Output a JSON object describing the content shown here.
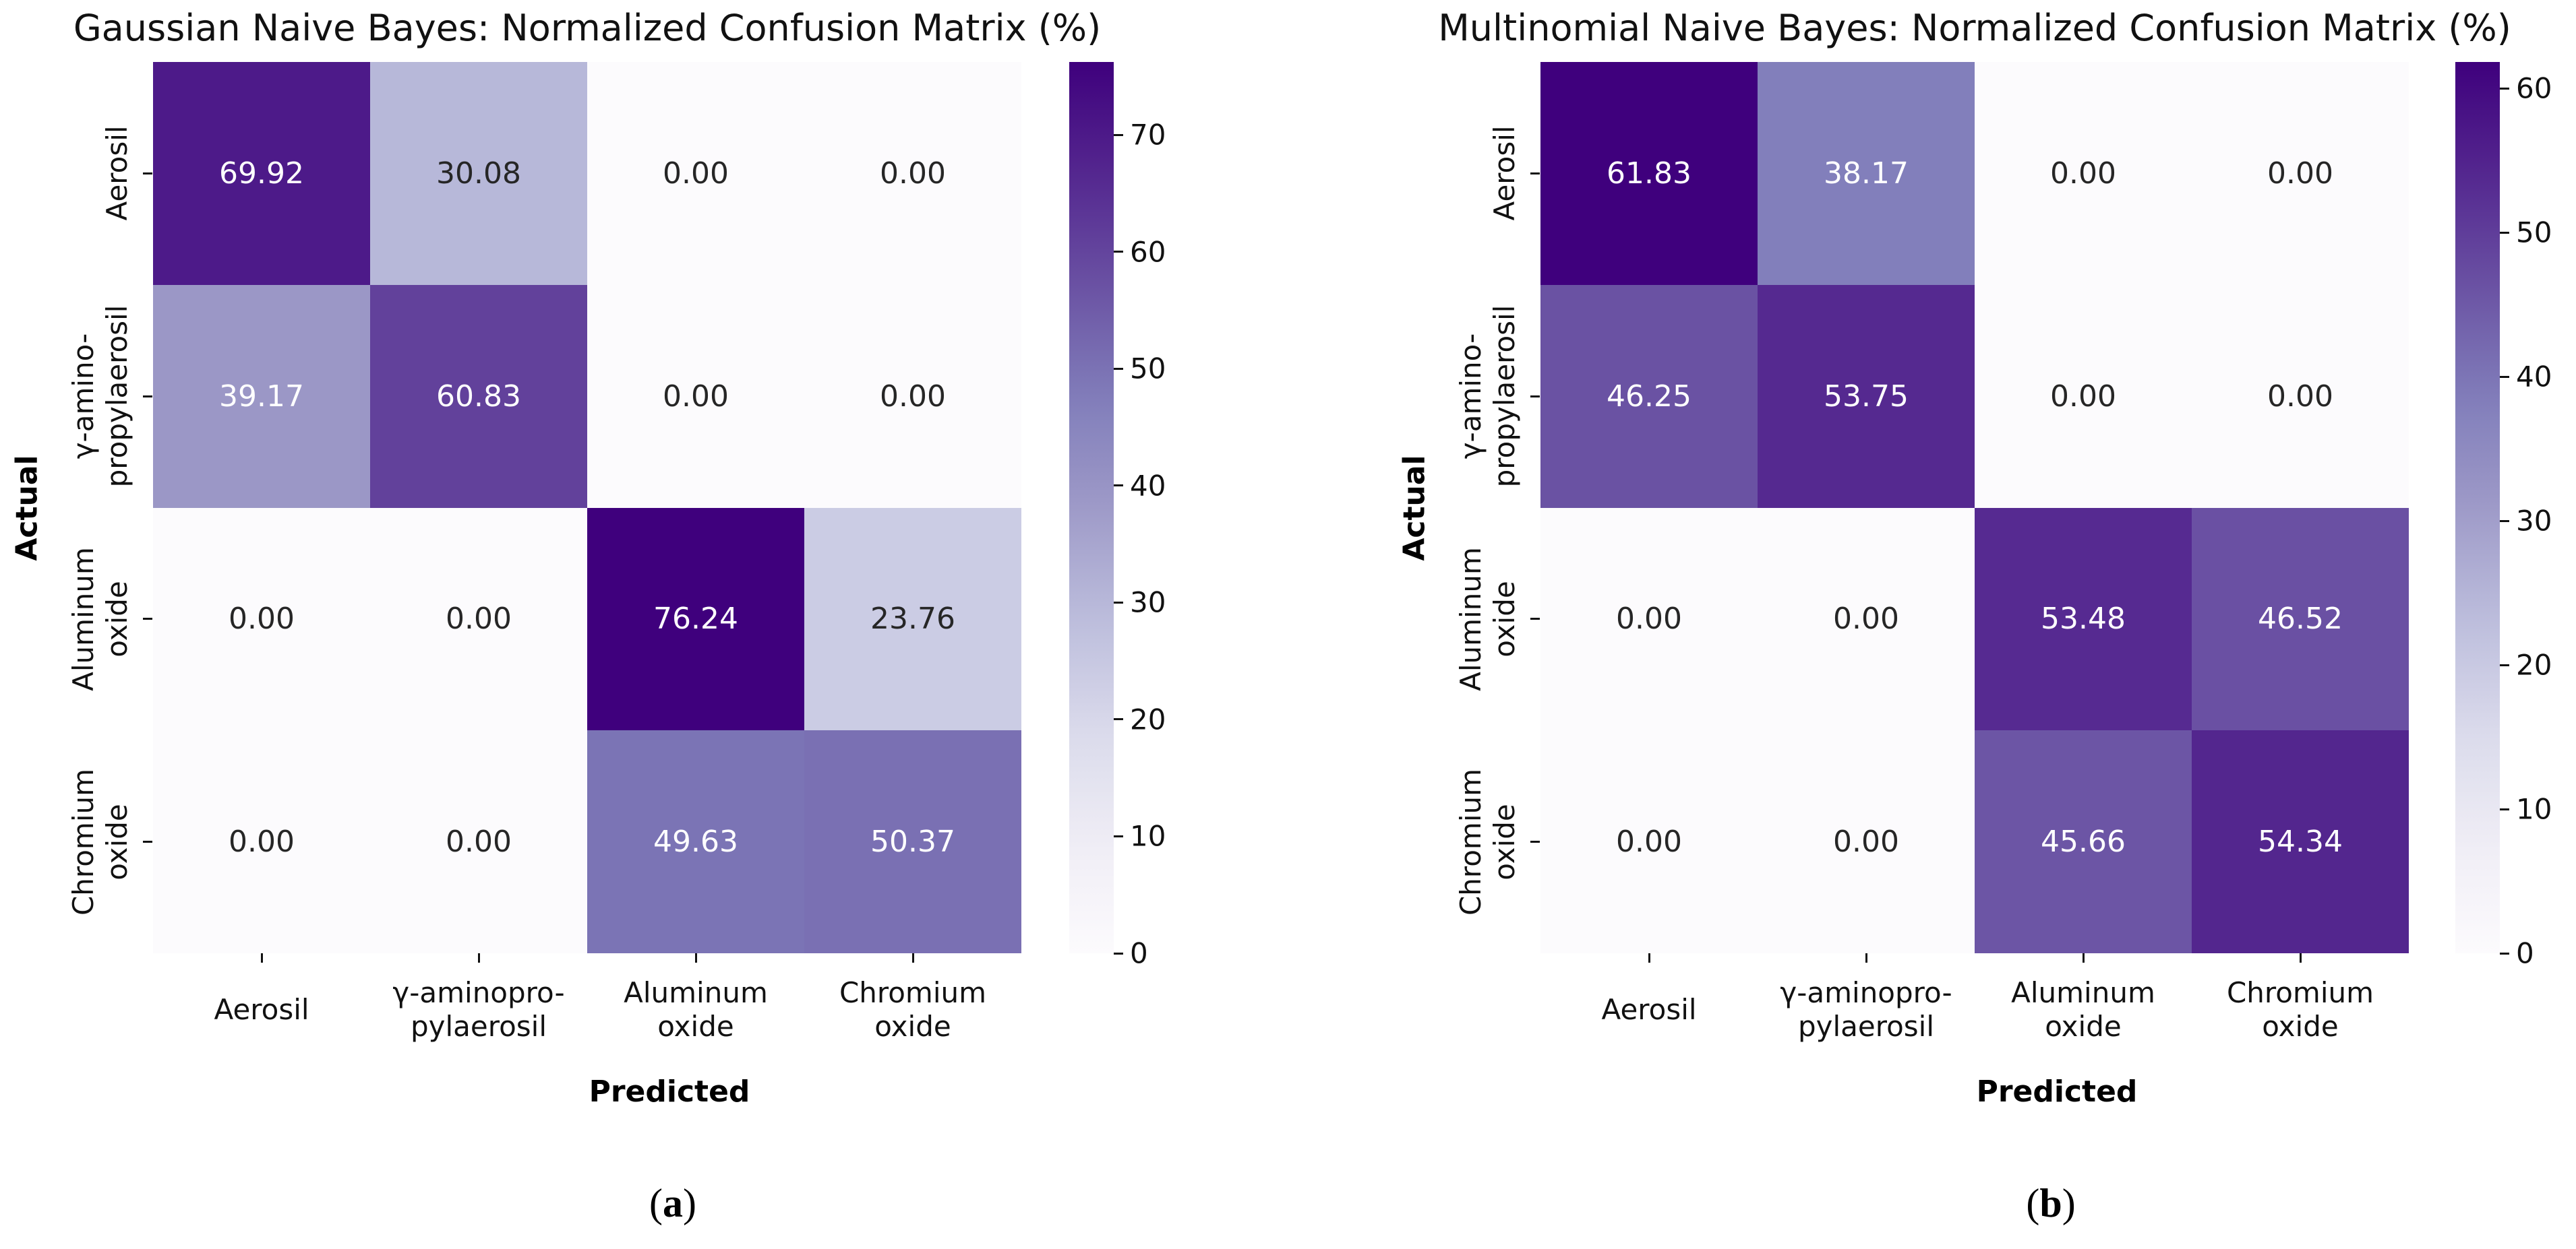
{
  "figure": {
    "background": "#ffffff",
    "colormap": "Purples",
    "colormap_anchors": [
      "#fcfbfd",
      "#efedf5",
      "#dadaeb",
      "#bcbddc",
      "#9e9ac8",
      "#807dba",
      "#6a51a3",
      "#54278f",
      "#3f007d"
    ],
    "annotation_colors": {
      "light": "#ffffff",
      "dark": "#262626"
    },
    "axis_text_color": "#111111"
  },
  "chart_data": [
    {
      "type": "heatmap",
      "title": "Gaussian Naive Bayes: Normalized Confusion Matrix (%)",
      "xlabel": "Predicted",
      "ylabel": "Actual",
      "x_categories": [
        "Aerosil",
        "γ-aminopro-\npylaerosil",
        "Aluminum\noxide",
        "Chromium\noxide"
      ],
      "y_categories": [
        "Aerosil",
        "γ-amino-\npropylaerosil",
        "Aluminum\noxide",
        "Chromium\noxide"
      ],
      "values": [
        [
          69.92,
          30.08,
          0.0,
          0.0
        ],
        [
          39.17,
          60.83,
          0.0,
          0.0
        ],
        [
          0.0,
          0.0,
          76.24,
          23.76
        ],
        [
          0.0,
          0.0,
          49.63,
          50.37
        ]
      ],
      "decimals": 2,
      "vmin": 0,
      "vmax": 76.24,
      "colorbar_ticks": [
        0,
        10,
        20,
        30,
        40,
        50,
        60,
        70
      ],
      "grid": false,
      "legend_position": "colorbar-right",
      "caption": {
        "open": "(",
        "letter": "a",
        "close": ")"
      }
    },
    {
      "type": "heatmap",
      "title": "Multinomial Naive Bayes: Normalized Confusion Matrix (%)",
      "xlabel": "Predicted",
      "ylabel": "Actual",
      "x_categories": [
        "Aerosil",
        "γ-aminopro-\npylaerosil",
        "Aluminum\noxide",
        "Chromium\noxide"
      ],
      "y_categories": [
        "Aerosil",
        "γ-amino-\npropylaerosil",
        "Aluminum\noxide",
        "Chromium\noxide"
      ],
      "values": [
        [
          61.83,
          38.17,
          0.0,
          0.0
        ],
        [
          46.25,
          53.75,
          0.0,
          0.0
        ],
        [
          0.0,
          0.0,
          53.48,
          46.52
        ],
        [
          0.0,
          0.0,
          45.66,
          54.34
        ]
      ],
      "decimals": 2,
      "vmin": 0,
      "vmax": 61.83,
      "colorbar_ticks": [
        0,
        10,
        20,
        30,
        40,
        50,
        60
      ],
      "grid": false,
      "legend_position": "colorbar-right",
      "caption": {
        "open": "(",
        "letter": "b",
        "close": ")"
      }
    }
  ]
}
